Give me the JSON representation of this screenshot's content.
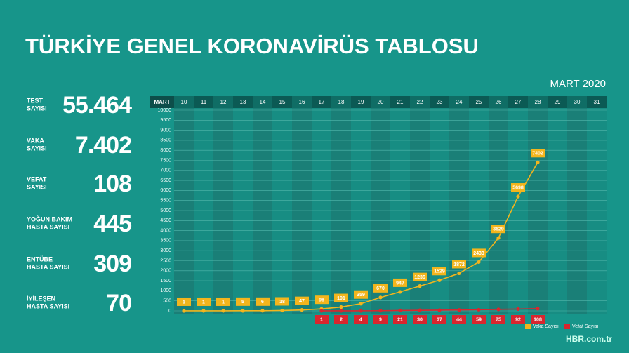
{
  "chart_data": {
    "type": "line",
    "title": "TÜRKİYE GENEL KORONAVİRÜS TABLOSU",
    "subtitle": "MART 2020",
    "month_label": "MART",
    "categories": [
      "10",
      "11",
      "12",
      "13",
      "14",
      "15",
      "16",
      "17",
      "18",
      "19",
      "20",
      "21",
      "22",
      "23",
      "24",
      "25",
      "26",
      "27",
      "28",
      "29",
      "30",
      "31"
    ],
    "series": [
      {
        "name": "Vaka Sayısı",
        "color": "#f2b51d",
        "values": [
          1,
          1,
          1,
          5,
          6,
          18,
          47,
          98,
          191,
          359,
          670,
          947,
          1236,
          1529,
          1872,
          2433,
          3629,
          5698,
          7402,
          null,
          null,
          null
        ]
      },
      {
        "name": "Vefat Sayısı",
        "color": "#d8262e",
        "values": [
          null,
          null,
          null,
          null,
          null,
          null,
          null,
          1,
          2,
          4,
          9,
          21,
          30,
          37,
          44,
          59,
          75,
          92,
          108,
          null,
          null,
          null
        ]
      }
    ],
    "ylim": [
      0,
      10000
    ],
    "yticks": [
      0,
      500,
      1000,
      1500,
      2000,
      2500,
      3000,
      3500,
      4000,
      4500,
      5000,
      5500,
      6000,
      6500,
      7000,
      7500,
      8000,
      8500,
      9000,
      9500,
      10000
    ],
    "grid": true,
    "legend": "bottom-right"
  },
  "stats": [
    {
      "label": [
        "TEST",
        "SAYISI"
      ],
      "value": "55.464"
    },
    {
      "label": [
        "VAKA",
        "SAYISI"
      ],
      "value": "7.402"
    },
    {
      "label": [
        "VEFAT",
        "SAYISI"
      ],
      "value": "108"
    },
    {
      "label": [
        "YOĞUN BAKIM",
        "HASTA SAYISI"
      ],
      "value": "445"
    },
    {
      "label": [
        "ENTÜBE",
        "HASTA SAYISI"
      ],
      "value": "309"
    },
    {
      "label": [
        "İYİLEŞEN",
        "HASTA SAYISI"
      ],
      "value": "70"
    }
  ],
  "watermark": "HBR.com.tr"
}
